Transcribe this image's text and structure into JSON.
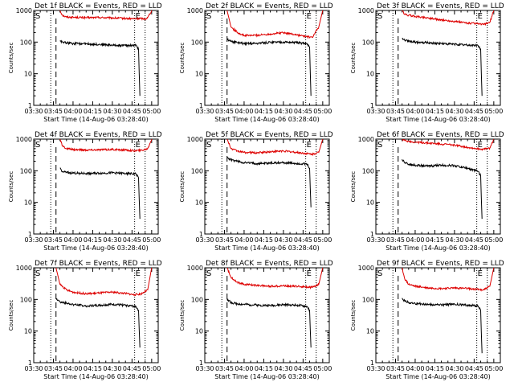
{
  "chart_data": {
    "type": "line",
    "y_scale": "log",
    "ylim": [
      1,
      1000
    ],
    "ylabel": "Counts/sec",
    "xlabel": "Start Time (14-Aug-06 03:28:40)",
    "x_ticks": [
      "03:30",
      "03:45",
      "04:00",
      "04:15",
      "04:30",
      "04:45",
      "05:00"
    ],
    "y_ticks": [
      "1",
      "10",
      "100",
      "1000"
    ],
    "marker_labels": [
      "S",
      "E"
    ],
    "series_colors": {
      "events": "#000000",
      "lld": "#dd0000"
    },
    "panels": [
      {
        "title": "Det 1f BLACK = Events, RED = LLD",
        "lld": {
          "x": [
            "03:50",
            "03:52",
            "03:55",
            "04:00",
            "04:10",
            "04:20",
            "04:30",
            "04:40",
            "04:47",
            "04:52",
            "04:55",
            "04:57",
            "05:00"
          ],
          "y": [
            1000,
            700,
            620,
            610,
            590,
            600,
            580,
            560,
            540,
            560,
            530,
            600,
            1000
          ]
        },
        "events": {
          "x": [
            "03:50",
            "03:52",
            "03:55",
            "04:00",
            "04:10",
            "04:20",
            "04:30",
            "04:40",
            "04:48",
            "04:50",
            "04:51"
          ],
          "y": [
            110,
            100,
            95,
            90,
            88,
            85,
            80,
            78,
            80,
            60,
            2
          ]
        }
      },
      {
        "title": "Det 2f BLACK = Events, RED = LLD",
        "lld": {
          "x": [
            "03:47",
            "03:50",
            "03:55",
            "04:00",
            "04:10",
            "04:20",
            "04:30",
            "04:40",
            "04:47",
            "04:52",
            "04:57",
            "05:00"
          ],
          "y": [
            1000,
            300,
            200,
            160,
            165,
            180,
            200,
            170,
            150,
            140,
            300,
            1000
          ]
        },
        "events": {
          "x": [
            "03:47",
            "03:50",
            "03:55",
            "04:00",
            "04:10",
            "04:20",
            "04:30",
            "04:40",
            "04:48",
            "04:50",
            "04:51"
          ],
          "y": [
            120,
            105,
            95,
            90,
            92,
            98,
            100,
            95,
            90,
            70,
            2
          ]
        }
      },
      {
        "title": "Det 3f BLACK = Events, RED = LLD",
        "lld": {
          "x": [
            "03:50",
            "03:52",
            "03:55",
            "04:00",
            "04:10",
            "04:20",
            "04:30",
            "04:40",
            "04:47",
            "04:52",
            "04:57",
            "05:00"
          ],
          "y": [
            1000,
            750,
            700,
            650,
            580,
            500,
            450,
            400,
            380,
            360,
            420,
            1000
          ]
        },
        "events": {
          "x": [
            "03:50",
            "03:52",
            "03:55",
            "04:00",
            "04:10",
            "04:20",
            "04:30",
            "04:40",
            "04:48",
            "04:50",
            "04:51"
          ],
          "y": [
            130,
            115,
            105,
            100,
            95,
            90,
            85,
            80,
            78,
            60,
            2
          ]
        }
      },
      {
        "title": "Det 4f BLACK = Events, RED = LLD",
        "lld": {
          "x": [
            "03:50",
            "03:52",
            "03:55",
            "04:00",
            "04:10",
            "04:20",
            "04:30",
            "04:40",
            "04:47",
            "04:52",
            "04:57",
            "05:00"
          ],
          "y": [
            1000,
            600,
            500,
            470,
            450,
            460,
            470,
            450,
            430,
            440,
            500,
            1000
          ]
        },
        "events": {
          "x": [
            "03:50",
            "03:52",
            "03:55",
            "04:00",
            "04:10",
            "04:20",
            "04:30",
            "04:40",
            "04:48",
            "04:50",
            "04:51"
          ],
          "y": [
            120,
            95,
            88,
            85,
            82,
            84,
            86,
            82,
            80,
            60,
            3
          ]
        }
      },
      {
        "title": "Det 5f BLACK = Events, RED = LLD",
        "lld": {
          "x": [
            "03:47",
            "03:50",
            "03:55",
            "04:00",
            "04:10",
            "04:20",
            "04:30",
            "04:40",
            "04:47",
            "04:52",
            "04:57",
            "05:00"
          ],
          "y": [
            1000,
            500,
            420,
            380,
            370,
            400,
            420,
            380,
            350,
            330,
            380,
            1000
          ]
        },
        "events": {
          "x": [
            "03:47",
            "03:50",
            "03:55",
            "04:00",
            "04:10",
            "04:20",
            "04:30",
            "04:40",
            "04:48",
            "04:50",
            "04:51"
          ],
          "y": [
            250,
            220,
            200,
            180,
            170,
            175,
            180,
            170,
            160,
            120,
            7
          ]
        }
      },
      {
        "title": "Det 6f BLACK = Events, RED = LLD",
        "lld": {
          "x": [
            "03:50",
            "03:52",
            "03:55",
            "04:00",
            "04:10",
            "04:20",
            "04:30",
            "04:40",
            "04:47",
            "04:52",
            "04:57",
            "05:00"
          ],
          "y": [
            1000,
            900,
            850,
            800,
            750,
            700,
            650,
            550,
            500,
            480,
            520,
            1000
          ]
        },
        "events": {
          "x": [
            "03:50",
            "03:52",
            "03:55",
            "04:00",
            "04:10",
            "04:20",
            "04:30",
            "04:40",
            "04:48",
            "04:50",
            "04:51"
          ],
          "y": [
            230,
            180,
            160,
            150,
            140,
            150,
            145,
            120,
            95,
            70,
            3
          ]
        }
      },
      {
        "title": "Det 7f BLACK = Events, RED = LLD",
        "lld": {
          "x": [
            "03:47",
            "03:50",
            "03:55",
            "04:00",
            "04:10",
            "04:20",
            "04:30",
            "04:40",
            "04:47",
            "04:52",
            "04:57",
            "05:00"
          ],
          "y": [
            1000,
            300,
            200,
            170,
            150,
            160,
            170,
            155,
            140,
            150,
            200,
            1000
          ]
        },
        "events": {
          "x": [
            "03:47",
            "03:50",
            "03:55",
            "04:00",
            "04:10",
            "04:20",
            "04:30",
            "04:40",
            "04:48",
            "04:50",
            "04:51"
          ],
          "y": [
            110,
            85,
            75,
            70,
            62,
            65,
            70,
            65,
            60,
            45,
            3
          ]
        }
      },
      {
        "title": "Det 8f BLACK = Events, RED = LLD",
        "lld": {
          "x": [
            "03:47",
            "03:50",
            "03:55",
            "04:00",
            "04:10",
            "04:20",
            "04:30",
            "04:40",
            "04:47",
            "04:52",
            "04:57",
            "05:00"
          ],
          "y": [
            1000,
            500,
            350,
            300,
            280,
            260,
            270,
            260,
            250,
            240,
            300,
            1000
          ]
        },
        "events": {
          "x": [
            "03:47",
            "03:50",
            "03:55",
            "04:00",
            "04:10",
            "04:20",
            "04:30",
            "04:40",
            "04:48",
            "04:50",
            "04:51"
          ],
          "y": [
            100,
            80,
            72,
            70,
            66,
            64,
            68,
            66,
            60,
            45,
            3
          ]
        }
      },
      {
        "title": "Det 9f BLACK = Events, RED = LLD",
        "lld": {
          "x": [
            "03:50",
            "03:52",
            "03:55",
            "04:00",
            "04:10",
            "04:20",
            "04:30",
            "04:40",
            "04:47",
            "04:52",
            "04:57",
            "05:00"
          ],
          "y": [
            1000,
            450,
            300,
            260,
            230,
            220,
            230,
            220,
            210,
            200,
            260,
            1000
          ]
        },
        "events": {
          "x": [
            "03:50",
            "03:52",
            "03:55",
            "04:00",
            "04:10",
            "04:20",
            "04:30",
            "04:40",
            "04:48",
            "04:50",
            "04:51"
          ],
          "y": [
            110,
            90,
            80,
            75,
            70,
            68,
            70,
            66,
            62,
            45,
            2
          ]
        }
      }
    ]
  }
}
